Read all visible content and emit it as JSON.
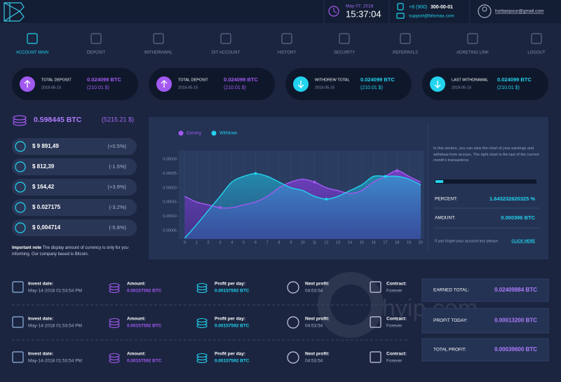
{
  "header": {
    "date": "May 07, 2018",
    "time": "15:37:04",
    "phone_prefix": "+8 (900)",
    "phone_number": "300-00-01",
    "email": "support@bitsmax.com",
    "user": "horbanpour@gmail.com"
  },
  "nav": [
    "ACCOUNT MAIN",
    "DEPOSIT",
    "WITHDRAWAL",
    "DIT ACCOUNT",
    "HISTORY",
    "SECURITY",
    "REFERRALS",
    "ADRETING LINK",
    "LOGOUT"
  ],
  "stats": [
    {
      "label": "TOTAL DEPOSIT",
      "date": "2018-05-15",
      "btc": "0.024099 BTC",
      "usd": "(210.01 $)"
    },
    {
      "label": "TOTAL DEPOSIT",
      "date": "2018-05-15",
      "btc": "0.024099 BTC",
      "usd": "(210.01 $)"
    },
    {
      "label": "WITHDREW TOTAL",
      "date": "2018-05-15",
      "btc": "0.024099 BTC",
      "usd": "(210.01 $)"
    },
    {
      "label": "LAST WITHDRAWAL",
      "date": "2018-05-15",
      "btc": "0.024099 BTC",
      "usd": "(210.01 $)"
    }
  ],
  "wallet": {
    "total": "0.598445 BTC",
    "usd": "(5215.21 $)",
    "coins": [
      {
        "value": "$ 9 891,49",
        "change": "(+0.5%)"
      },
      {
        "value": "$ 812,39",
        "change": "(-1.5%)"
      },
      {
        "value": "$ 164,42",
        "change": "(+3.9%)"
      },
      {
        "value": "$ 0.027175",
        "change": "(-3.2%)"
      },
      {
        "value": "$ 0,004714",
        "change": "(-5.8%)"
      }
    ],
    "note_title": "Important note",
    "note": "The display amount of currency is only for you informing. Our company based is Bitcoin."
  },
  "chart_data": {
    "type": "line",
    "x": [
      0,
      1,
      2,
      3,
      4,
      5,
      6,
      7,
      8,
      9,
      10,
      11,
      12,
      13,
      14,
      15,
      16,
      17,
      18,
      19,
      20
    ],
    "xticks": [
      0,
      1,
      2,
      3,
      4,
      5,
      6,
      7,
      8,
      9,
      10,
      11,
      12,
      13,
      14,
      15,
      16,
      17,
      18,
      19,
      20
    ],
    "xlim": [
      -0.5,
      20.3
    ],
    "ylim": [
      2e-05,
      0.00033
    ],
    "yticks": [
      {
        "value": 5e-05,
        "label": "0.00005"
      },
      {
        "value": 0.0001,
        "label": "0.00010"
      },
      {
        "value": 0.00015,
        "label": "0.00015"
      },
      {
        "value": 0.0002,
        "label": "0.00020"
      },
      {
        "value": 0.00025,
        "label": "0.00025"
      },
      {
        "value": 0.0003,
        "label": "0.00030"
      }
    ],
    "grid": true,
    "series": [
      {
        "name": "Earning",
        "color": "#a259f0",
        "values": [
          0.00017,
          0.00015,
          0.00014,
          0.00013,
          0.00013,
          0.00014,
          0.00015,
          0.00017,
          0.0002,
          0.00022,
          0.00023,
          0.00022,
          0.0002,
          0.00019,
          0.00018,
          0.00019,
          0.00022,
          0.00024,
          0.00026,
          0.00024,
          0.00022
        ]
      },
      {
        "name": "Withdraw",
        "color": "#22d3ee",
        "values": [
          2.3e-05,
          7e-05,
          0.00012,
          0.00017,
          0.00022,
          0.00024,
          0.00025,
          0.00024,
          0.00022,
          0.0002,
          0.00019,
          0.00017,
          0.00016,
          0.00017,
          0.00019,
          0.00021,
          0.00024,
          0.00024,
          0.00024,
          0.00023,
          0.00021
        ]
      }
    ]
  },
  "chart_info": {
    "text": "In this section, you can view the chart of your earnings and withdraw from accoun, The right chart is the last of the current month's transactions",
    "percent_label": "PERCENT:",
    "percent": "1.643232620325 %",
    "amount_label": "AMOUNT:",
    "amount": "0.000396 BTC",
    "footer": "If you forget your account key please",
    "link": "CLICK HERE"
  },
  "investment_labels": [
    "Invest date:",
    "Amount:",
    "Profit per day:",
    "Next profit:",
    "Contract:"
  ],
  "investments": [
    [
      "May-14-2018 01:53:54 PM",
      "0.00157592 BTC",
      "0.00157592 BTC",
      "04:53:54",
      "Forever"
    ],
    [
      "May-14-2018 01:53:54 PM",
      "0.00157592 BTC",
      "0.00157592 BTC",
      "04:53:54",
      "Forever"
    ],
    [
      "May-14-2018 01:53:54 PM",
      "0.00157592 BTC",
      "0.00157592 BTC",
      "04:53:54",
      "Forever"
    ]
  ],
  "summary": [
    {
      "label": "EARNED TOTAL:",
      "value": "0.02409884 BTC"
    },
    {
      "label": "PROFIT TODAY:",
      "value": "0.00013200 BTC"
    },
    {
      "label": "TOTAL PROFIT:",
      "value": "0.00039600 BTC"
    }
  ],
  "watermark": "hyip.com"
}
